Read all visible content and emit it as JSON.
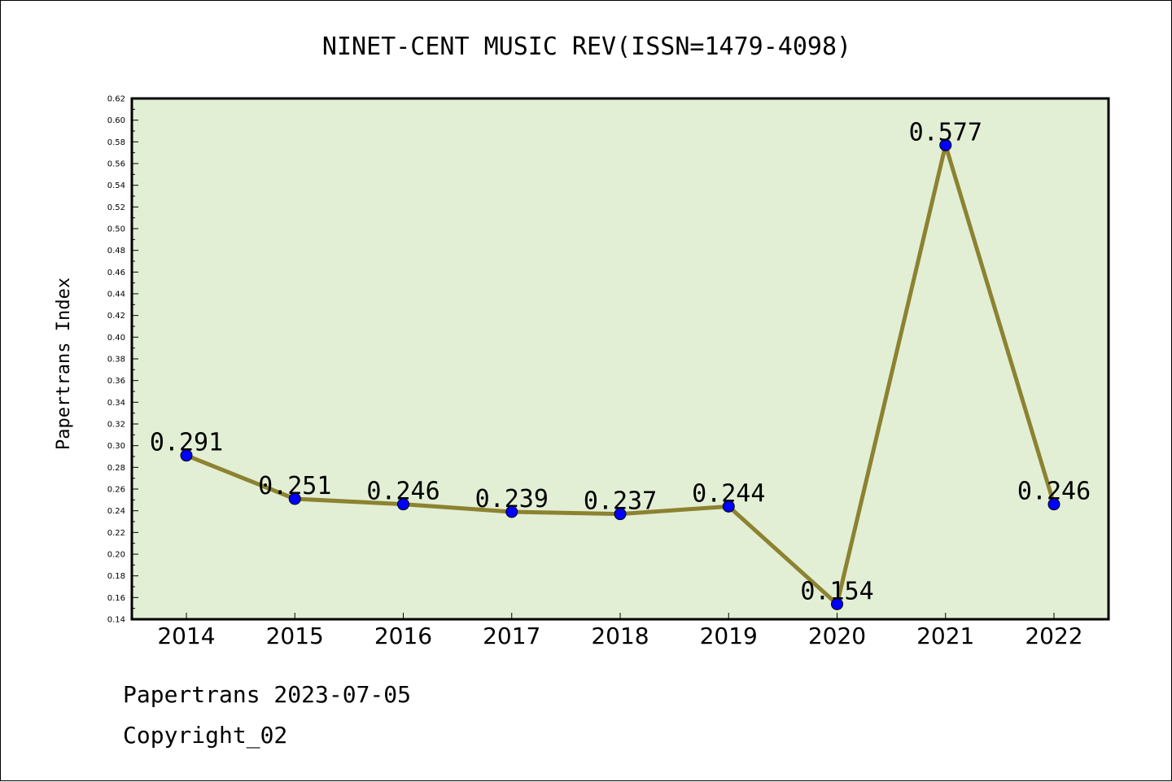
{
  "chart_data": {
    "type": "line",
    "title": "NINET-CENT MUSIC REV(ISSN=1479-4098)",
    "xlabel": "",
    "ylabel": "Papertrans Index",
    "categories": [
      "2014",
      "2015",
      "2016",
      "2017",
      "2018",
      "2019",
      "2020",
      "2021",
      "2022"
    ],
    "series": [
      {
        "values": [
          0.291,
          0.251,
          0.246,
          0.239,
          0.237,
          0.244,
          0.154,
          0.577,
          0.246
        ],
        "labels": [
          "0.291",
          "0.251",
          "0.246",
          "0.239",
          "0.237",
          "0.244",
          "0.154",
          "0.577",
          "0.246"
        ]
      }
    ],
    "ylim": [
      0.14,
      0.62
    ],
    "yticks": [
      "0.14",
      "0.16",
      "0.18",
      "0.20",
      "0.22",
      "0.24",
      "0.26",
      "0.28",
      "0.30",
      "0.32",
      "0.34",
      "0.36",
      "0.38",
      "0.40",
      "0.42",
      "0.44",
      "0.46",
      "0.48",
      "0.50",
      "0.52",
      "0.54",
      "0.56",
      "0.58",
      "0.60",
      "0.62"
    ],
    "grid": false,
    "colors": {
      "plot_background": "#e2efd5",
      "line": "#8c8230",
      "marker": "#0000ff"
    }
  },
  "footer": {
    "source": "Papertrans 2023-07-05",
    "copyright": "Copyright_02"
  }
}
